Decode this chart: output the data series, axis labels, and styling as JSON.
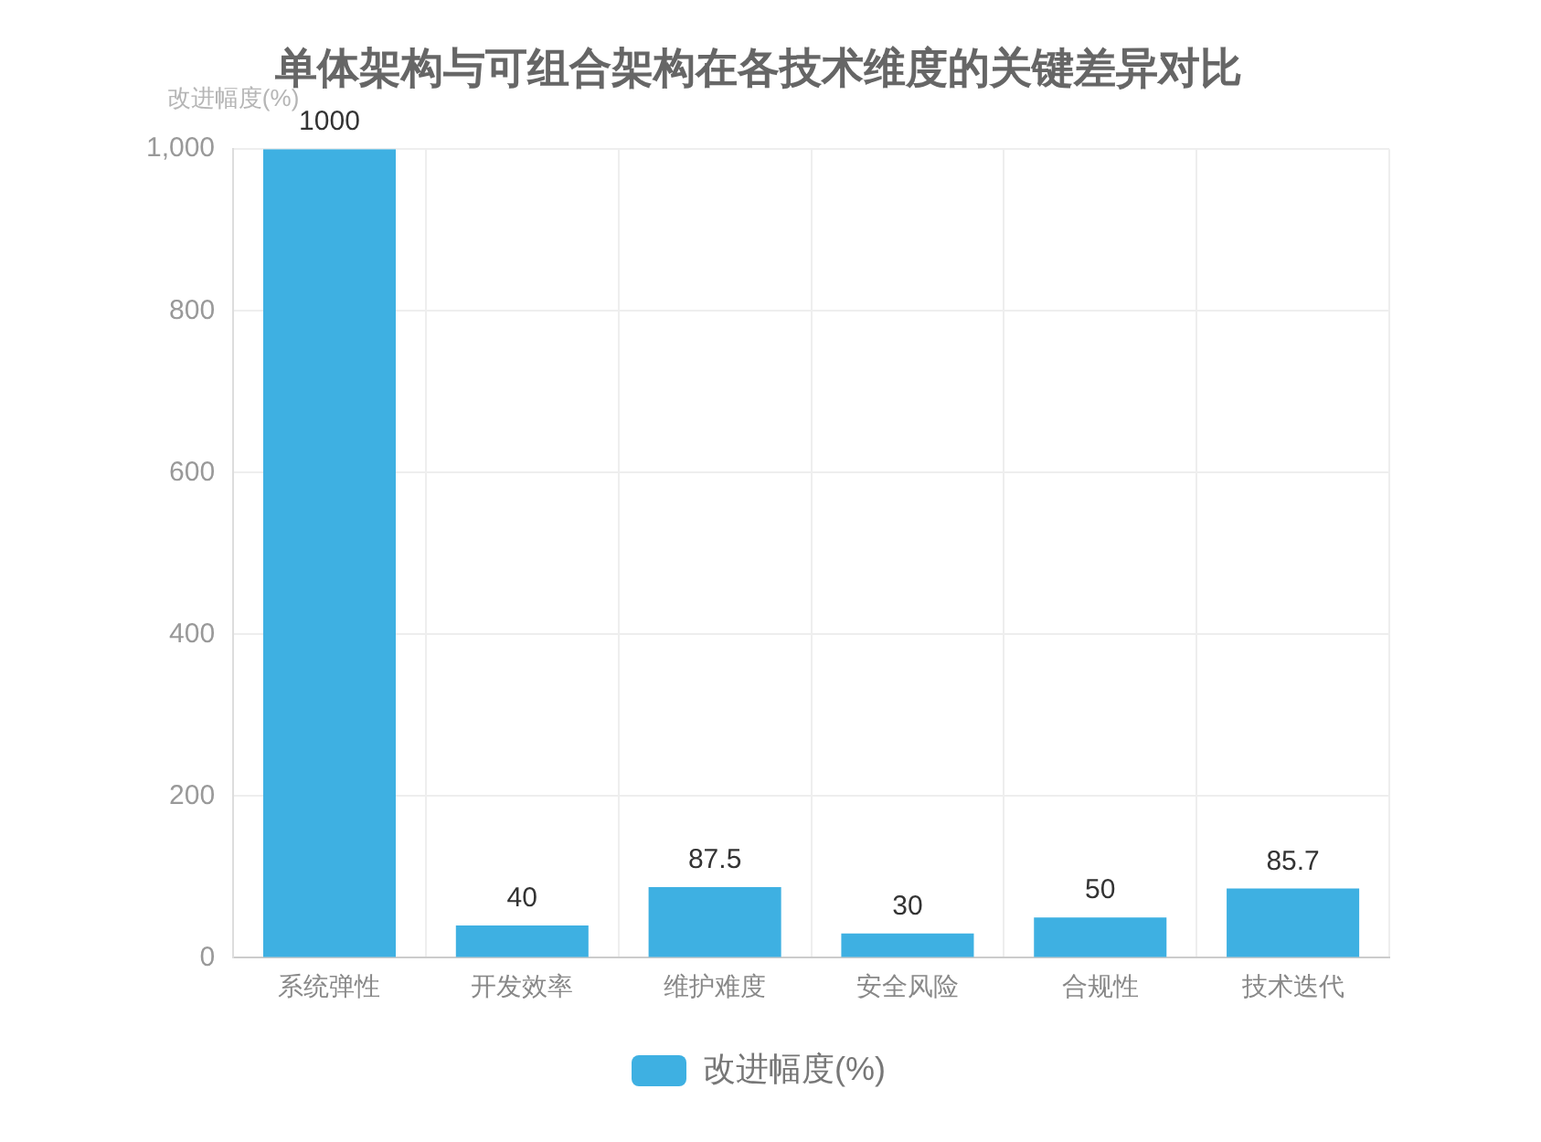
{
  "chart_data": {
    "type": "bar",
    "title": "单体架构与可组合架构在各技术维度的关键差异对比",
    "ylabel": "改进幅度(%)",
    "categories": [
      "系统弹性",
      "开发效率",
      "维护难度",
      "安全风险",
      "合规性",
      "技术迭代"
    ],
    "series": [
      {
        "name": "改进幅度(%)",
        "color": "#3eb0e2",
        "values": [
          1000,
          40,
          87.5,
          30,
          50,
          85.7
        ]
      }
    ],
    "ylim": [
      0,
      1000
    ],
    "yticks": [
      0,
      200,
      400,
      600,
      800,
      {
        "value": 1000,
        "label": "1,000"
      }
    ],
    "grid": true,
    "legend": "bottom",
    "data_labels": true
  }
}
